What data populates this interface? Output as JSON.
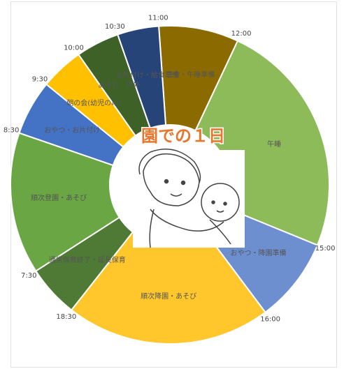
{
  "chart_data": {
    "type": "donut",
    "title": "園での１日",
    "categories": [
      "昼食・午睡準備",
      "午睡",
      "おやつ・降園準備",
      "順次降園・あそび",
      "通常保育終了・延長保育",
      "順次登園・あそび",
      "おやつ・お片付け",
      "朝の会(幼児のみ)",
      "あそび　戸外",
      "お片付け・給食準備"
    ],
    "boundary_labels": [
      "11:00",
      "12:00",
      "15:00",
      "16:00",
      "18:30",
      "7:30",
      "8:30",
      "9:30",
      "10:00",
      "10:30"
    ],
    "values": [
      8.1,
      24.2,
      8.6,
      20.8,
      5.3,
      14.4,
      5.6,
      4.4,
      4.4,
      4.2
    ],
    "colors": [
      "#8b6b00",
      "#8dbb5a",
      "#6d8fd0",
      "#ffc72c",
      "#4e7a35",
      "#6aa643",
      "#4472c4",
      "#ffc000",
      "#3e6128",
      "#264478"
    ]
  }
}
